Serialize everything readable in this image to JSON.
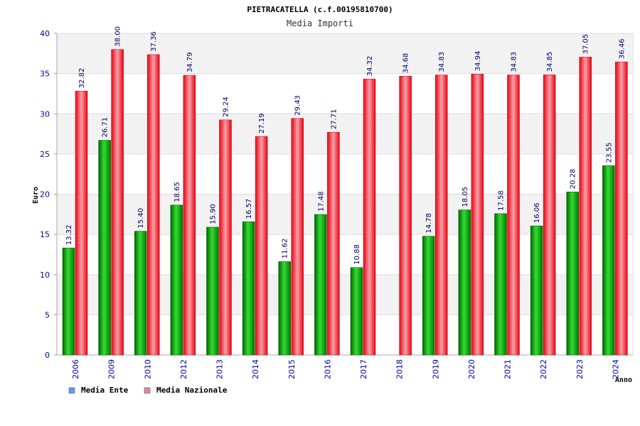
{
  "chart_data": {
    "type": "bar",
    "title": "PIETRACATELLA (c.f.00195810700)",
    "subtitle": "Media Importi",
    "xlabel": "Anno",
    "ylabel": "Euro",
    "ylim": [
      0,
      40
    ],
    "yticks": [
      0,
      5,
      10,
      15,
      20,
      25,
      30,
      35,
      40
    ],
    "grid": true,
    "legend_position": "bottom-left",
    "categories": [
      "2006",
      "2009",
      "2010",
      "2012",
      "2013",
      "2014",
      "2015",
      "2016",
      "2017",
      "2018",
      "2019",
      "2020",
      "2021",
      "2022",
      "2023",
      "2024"
    ],
    "series": [
      {
        "name": "Media Ente",
        "color": "#00aa00",
        "legend_color": "#6699ee",
        "values": [
          13.32,
          26.71,
          15.4,
          18.65,
          15.9,
          16.57,
          11.62,
          17.48,
          10.88,
          null,
          14.78,
          18.05,
          17.58,
          16.06,
          20.28,
          23.55
        ],
        "labels": [
          "13.32",
          "26.71",
          "15.40",
          "18.65",
          "15.90",
          "16.57",
          "11.62",
          "17.48",
          "10.88",
          "",
          "14.78",
          "18.05",
          "17.58",
          "16.06",
          "20.28",
          "23.55"
        ]
      },
      {
        "name": "Media Nazionale",
        "color": "#ee1122",
        "legend_color": "#dd88aa",
        "values": [
          32.82,
          38.0,
          37.36,
          34.79,
          29.24,
          27.19,
          29.43,
          27.71,
          34.32,
          34.68,
          34.83,
          34.94,
          34.83,
          34.85,
          37.05,
          36.46
        ],
        "labels": [
          "32.82",
          "38.00",
          "37.36",
          "34.79",
          "29.24",
          "27.19",
          "29.43",
          "27.71",
          "34.32",
          "34.68",
          "34.83",
          "34.94",
          "34.83",
          "34.85",
          "37.05",
          "36.46"
        ]
      }
    ]
  }
}
